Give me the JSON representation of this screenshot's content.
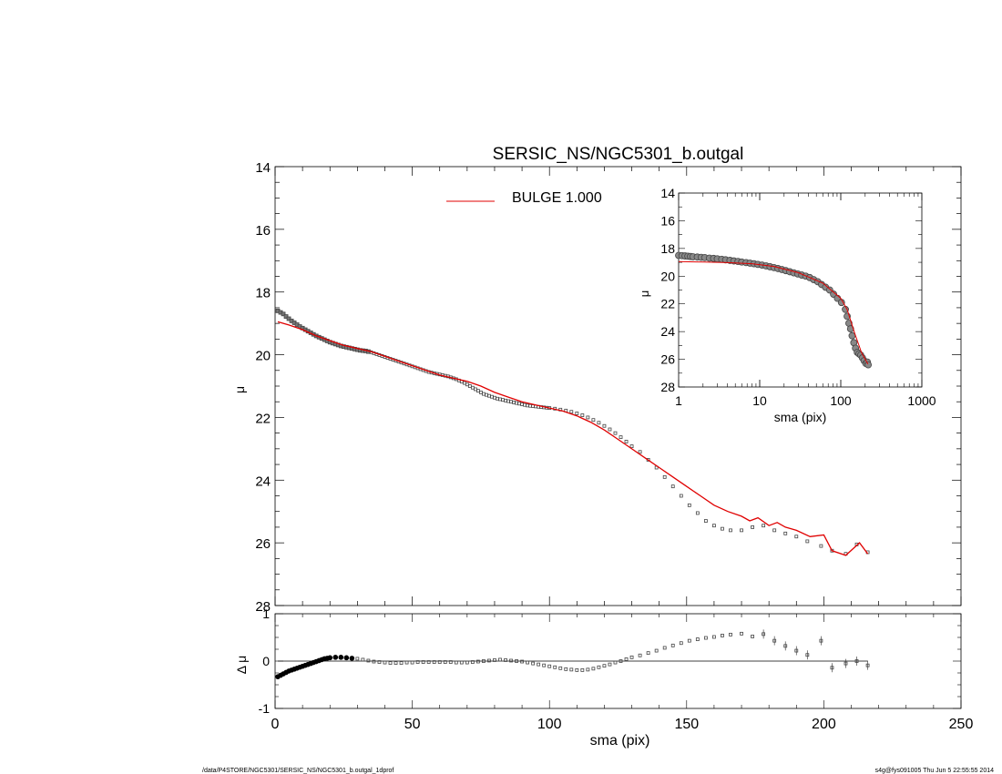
{
  "chart_data": [
    {
      "id": "main",
      "type": "scatter",
      "title": "SERSIC_NS/NGC5301_b.outgal",
      "ylabel": "μ",
      "xlim": [
        0,
        250
      ],
      "ylim": [
        28,
        14
      ],
      "y_inverted": true,
      "xticks": [
        0,
        50,
        100,
        150,
        200,
        250
      ],
      "yticks": [
        "14",
        "16",
        "18",
        "20",
        "22",
        "24",
        "26",
        "28"
      ],
      "legend": {
        "label": "BULGE  1.000",
        "color": "#e00000",
        "placement": "top-center"
      },
      "series": [
        {
          "kind": "points",
          "marker": "square",
          "color": "#555555",
          "x": [
            1,
            2,
            3,
            4,
            5,
            6,
            7,
            8,
            9,
            10,
            11,
            12,
            13,
            14,
            15,
            16,
            17,
            18,
            19,
            20,
            21,
            22,
            23,
            24,
            25,
            26,
            27,
            28,
            29,
            30,
            31,
            32,
            33,
            34,
            35,
            36,
            37,
            38,
            39,
            40,
            41,
            42,
            43,
            44,
            45,
            46,
            47,
            48,
            49,
            50,
            51,
            52,
            53,
            54,
            55,
            56,
            57,
            58,
            59,
            60,
            61,
            62,
            63,
            64,
            65,
            66,
            67,
            68,
            69,
            70,
            71,
            72,
            73,
            74,
            75,
            76,
            77,
            78,
            79,
            80,
            81,
            82,
            83,
            84,
            85,
            86,
            87,
            88,
            89,
            90,
            91,
            92,
            93,
            94,
            95,
            96,
            97,
            98,
            99,
            100,
            102,
            104,
            106,
            108,
            110,
            112,
            114,
            116,
            118,
            120,
            122,
            124,
            126,
            128,
            130,
            133,
            136,
            139,
            142,
            145,
            148,
            151,
            154,
            157,
            160,
            163,
            166,
            170,
            174,
            178,
            182,
            186,
            190,
            194,
            199,
            203,
            208,
            212,
            216
          ],
          "y": [
            18.6,
            18.65,
            18.7,
            18.78,
            18.85,
            18.92,
            18.98,
            19.04,
            19.1,
            19.15,
            19.2,
            19.25,
            19.3,
            19.35,
            19.4,
            19.44,
            19.48,
            19.52,
            19.56,
            19.6,
            19.63,
            19.66,
            19.69,
            19.72,
            19.74,
            19.76,
            19.78,
            19.8,
            19.82,
            19.84,
            19.86,
            19.87,
            19.88,
            19.9,
            19.92,
            19.95,
            19.98,
            20.01,
            20.04,
            20.07,
            20.1,
            20.13,
            20.16,
            20.19,
            20.22,
            20.25,
            20.28,
            20.31,
            20.34,
            20.37,
            20.4,
            20.43,
            20.46,
            20.49,
            20.52,
            20.55,
            20.57,
            20.59,
            20.61,
            20.63,
            20.65,
            20.67,
            20.69,
            20.72,
            20.75,
            20.78,
            20.82,
            20.86,
            20.9,
            20.95,
            21.0,
            21.05,
            21.1,
            21.15,
            21.2,
            21.25,
            21.28,
            21.31,
            21.34,
            21.37,
            21.4,
            21.42,
            21.44,
            21.46,
            21.48,
            21.5,
            21.52,
            21.54,
            21.56,
            21.58,
            21.6,
            21.62,
            21.63,
            21.64,
            21.65,
            21.66,
            21.67,
            21.68,
            21.69,
            21.7,
            21.72,
            21.75,
            21.78,
            21.82,
            21.87,
            21.93,
            22.0,
            22.08,
            22.17,
            22.27,
            22.38,
            22.5,
            22.63,
            22.77,
            22.92,
            23.1,
            23.35,
            23.6,
            23.9,
            24.2,
            24.5,
            24.8,
            25.05,
            25.3,
            25.45,
            25.55,
            25.6,
            25.6,
            25.5,
            25.45,
            25.6,
            25.7,
            25.8,
            25.95,
            26.1,
            26.25,
            26.35,
            26.05,
            26.3
          ]
        },
        {
          "kind": "line",
          "name": "BULGE  1.000",
          "color": "#e00000",
          "x": [
            1,
            5,
            10,
            15,
            20,
            25,
            30,
            35,
            40,
            45,
            50,
            55,
            60,
            65,
            70,
            75,
            80,
            85,
            90,
            95,
            100,
            105,
            110,
            115,
            120,
            125,
            130,
            135,
            140,
            145,
            150,
            155,
            160,
            165,
            170,
            173,
            176,
            180,
            183,
            186,
            190,
            195,
            200,
            203,
            208,
            213,
            216
          ],
          "y": [
            18.95,
            19.05,
            19.2,
            19.4,
            19.55,
            19.7,
            19.8,
            19.9,
            20.05,
            20.2,
            20.35,
            20.5,
            20.65,
            20.75,
            20.85,
            21.0,
            21.2,
            21.35,
            21.5,
            21.6,
            21.7,
            21.8,
            21.95,
            22.15,
            22.4,
            22.7,
            23.0,
            23.3,
            23.6,
            23.9,
            24.2,
            24.5,
            24.8,
            25.0,
            25.15,
            25.3,
            25.2,
            25.45,
            25.35,
            25.5,
            25.6,
            25.8,
            25.75,
            26.25,
            26.4,
            26.0,
            26.35
          ]
        }
      ]
    },
    {
      "id": "inset",
      "type": "scatter",
      "xlabel": "sma (pix)",
      "ylabel": "μ",
      "xscale": "log",
      "xlim": [
        1,
        1000
      ],
      "ylim": [
        28,
        14
      ],
      "y_inverted": true,
      "xticks": [
        "1",
        "10",
        "100",
        "1000"
      ],
      "yticks": [
        "14",
        "16",
        "18",
        "20",
        "22",
        "24",
        "26",
        "28"
      ],
      "series": [
        {
          "kind": "points",
          "marker": "circle",
          "color": "#555555",
          "x": [
            1,
            1.1,
            1.2,
            1.3,
            1.4,
            1.5,
            1.7,
            1.9,
            2.1,
            2.4,
            2.7,
            3,
            3.4,
            3.8,
            4.3,
            4.8,
            5.4,
            6,
            6.8,
            7.6,
            8.5,
            9.5,
            10.7,
            12,
            13.4,
            15,
            16.8,
            18.8,
            21,
            23.5,
            26.3,
            29.5,
            33,
            37,
            41.4,
            46.4,
            52,
            58,
            65,
            73,
            81.5,
            91,
            102,
            114,
            120,
            126,
            132,
            138,
            145,
            152,
            160,
            168,
            176,
            185,
            194,
            204,
            213,
            218
          ],
          "y": [
            18.5,
            18.52,
            18.54,
            18.56,
            18.58,
            18.6,
            18.62,
            18.64,
            18.66,
            18.7,
            18.72,
            18.75,
            18.78,
            18.82,
            18.86,
            18.9,
            18.94,
            18.98,
            19.02,
            19.06,
            19.1,
            19.15,
            19.2,
            19.26,
            19.32,
            19.38,
            19.45,
            19.52,
            19.6,
            19.68,
            19.76,
            19.84,
            19.92,
            20.0,
            20.1,
            20.25,
            20.4,
            20.6,
            20.8,
            21.0,
            21.3,
            21.6,
            21.9,
            22.4,
            22.9,
            23.4,
            23.8,
            24.3,
            24.8,
            25.2,
            25.5,
            25.6,
            25.7,
            25.9,
            26.1,
            26.3,
            26.2,
            26.4
          ]
        },
        {
          "kind": "line",
          "color": "#e00000",
          "x": [
            1,
            2,
            4,
            8,
            15,
            30,
            60,
            100,
            120,
            150,
            180,
            216
          ],
          "y": [
            18.95,
            18.98,
            19.02,
            19.1,
            19.3,
            19.75,
            20.5,
            21.6,
            22.4,
            24.2,
            25.5,
            26.35
          ]
        }
      ]
    },
    {
      "id": "residual",
      "type": "scatter",
      "xlabel": "sma (pix)",
      "ylabel": "Δ μ",
      "xlim": [
        0,
        250
      ],
      "ylim": [
        -1,
        1
      ],
      "xticks": [
        "0",
        "50",
        "100",
        "150",
        "200",
        "250"
      ],
      "yticks": [
        "-1",
        "0",
        "1"
      ],
      "series": [
        {
          "kind": "points",
          "marker": "square",
          "color": "#555555",
          "x": [
            1,
            2,
            3,
            4,
            5,
            6,
            7,
            8,
            9,
            10,
            11,
            12,
            13,
            14,
            15,
            16,
            17,
            18,
            19,
            20,
            22,
            24,
            26,
            28,
            30,
            32,
            34,
            36,
            38,
            40,
            42,
            44,
            46,
            48,
            50,
            52,
            54,
            56,
            58,
            60,
            62,
            64,
            66,
            68,
            70,
            72,
            74,
            76,
            78,
            80,
            82,
            84,
            86,
            88,
            90,
            92,
            94,
            96,
            98,
            100,
            102,
            104,
            106,
            108,
            110,
            112,
            114,
            116,
            118,
            120,
            122,
            124,
            126,
            128,
            130,
            133,
            136,
            139,
            142,
            145,
            148,
            151,
            154,
            157,
            160,
            163,
            166,
            170,
            174,
            178,
            182,
            186,
            190,
            194,
            199,
            203,
            208,
            212,
            216
          ],
          "y": [
            -0.33,
            -0.3,
            -0.27,
            -0.24,
            -0.21,
            -0.19,
            -0.17,
            -0.15,
            -0.13,
            -0.11,
            -0.09,
            -0.07,
            -0.05,
            -0.03,
            -0.01,
            0.01,
            0.03,
            0.05,
            0.06,
            0.07,
            0.08,
            0.08,
            0.07,
            0.06,
            0.05,
            0.03,
            0.01,
            -0.01,
            -0.02,
            -0.03,
            -0.04,
            -0.04,
            -0.04,
            -0.03,
            -0.03,
            -0.02,
            -0.02,
            -0.02,
            -0.02,
            -0.02,
            -0.02,
            -0.02,
            -0.03,
            -0.03,
            -0.03,
            -0.02,
            -0.01,
            0.0,
            0.01,
            0.02,
            0.03,
            0.02,
            0.01,
            0.0,
            -0.01,
            -0.03,
            -0.05,
            -0.07,
            -0.09,
            -0.11,
            -0.13,
            -0.15,
            -0.17,
            -0.18,
            -0.19,
            -0.19,
            -0.18,
            -0.16,
            -0.13,
            -0.1,
            -0.07,
            -0.03,
            0.0,
            0.04,
            0.08,
            0.12,
            0.17,
            0.22,
            0.28,
            0.33,
            0.38,
            0.43,
            0.46,
            0.49,
            0.51,
            0.54,
            0.56,
            0.58,
            0.52,
            0.57,
            0.43,
            0.32,
            0.22,
            0.13,
            0.43,
            -0.14,
            -0.05,
            0.0,
            -0.09
          ]
        }
      ]
    }
  ],
  "footer": {
    "path": "/data/P4STORE/NGC5301/SERSIC_NS/NGC5301_b.outgal_1dprof",
    "stamp": "s4g@fys091005  Thu Jun  5 22:55:55 2014"
  }
}
